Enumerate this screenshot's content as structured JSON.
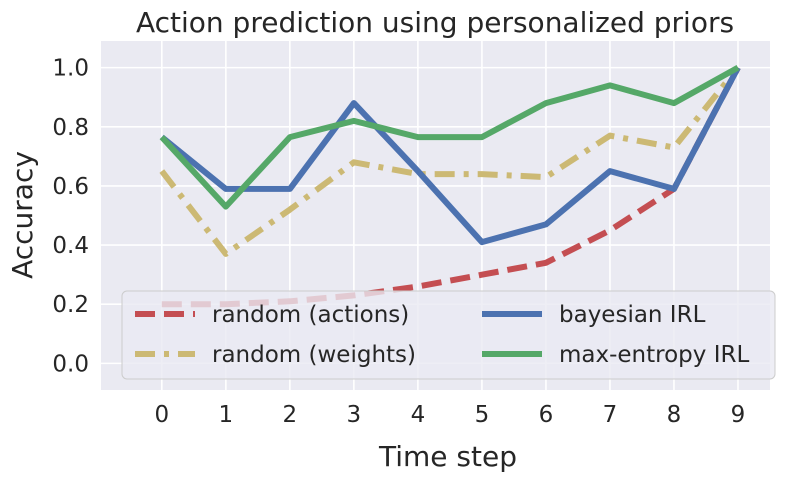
{
  "chart_data": {
    "type": "line",
    "title": "Action prediction using personalized priors",
    "xlabel": "Time step",
    "ylabel": "Accuracy",
    "x": [
      0,
      1,
      2,
      3,
      4,
      5,
      6,
      7,
      8,
      9
    ],
    "xlim": [
      -0.95,
      9.5
    ],
    "ylim": [
      -0.09,
      1.09
    ],
    "yticks": [
      0.0,
      0.2,
      0.4,
      0.6,
      0.8,
      1.0
    ],
    "ytick_labels": [
      "0.0",
      "0.2",
      "0.4",
      "0.6",
      "0.8",
      "1.0"
    ],
    "xtick_labels": [
      "0",
      "1",
      "2",
      "3",
      "4",
      "5",
      "6",
      "7",
      "8",
      "9"
    ],
    "grid": true,
    "legend_position": "lower-left",
    "series": [
      {
        "name": "random (actions)",
        "color": "#c44e52",
        "dash": "dashed",
        "values": [
          0.2,
          0.2,
          0.21,
          0.23,
          0.26,
          0.3,
          0.34,
          0.45,
          0.59,
          1.0
        ]
      },
      {
        "name": "random (weights)",
        "color": "#ccb974",
        "dash": "dashdot",
        "values": [
          0.65,
          0.37,
          0.52,
          0.68,
          0.64,
          0.64,
          0.63,
          0.77,
          0.73,
          1.0
        ]
      },
      {
        "name": "bayesian IRL",
        "color": "#4c72b0",
        "dash": "solid",
        "values": [
          0.765,
          0.59,
          0.59,
          0.88,
          0.65,
          0.41,
          0.47,
          0.65,
          0.59,
          1.0
        ]
      },
      {
        "name": "max-entropy IRL",
        "color": "#55a868",
        "dash": "solid",
        "values": [
          0.765,
          0.53,
          0.765,
          0.82,
          0.765,
          0.765,
          0.88,
          0.94,
          0.88,
          1.0
        ]
      }
    ]
  }
}
